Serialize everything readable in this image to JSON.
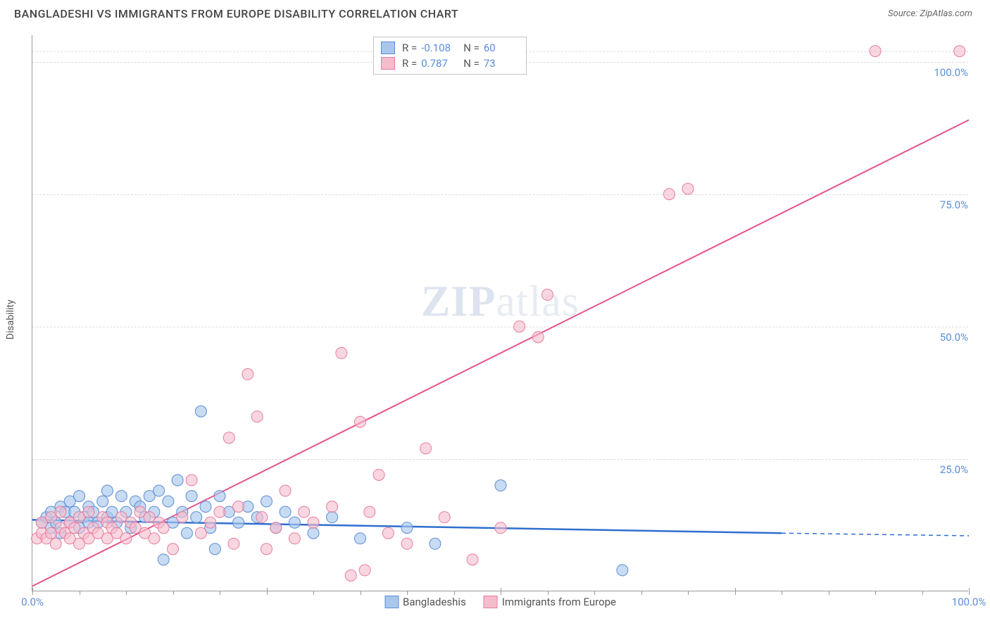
{
  "header": {
    "title": "BANGLADESHI VS IMMIGRANTS FROM EUROPE DISABILITY CORRELATION CHART",
    "source": "Source: ZipAtlas.com"
  },
  "chart": {
    "type": "scatter",
    "ylabel": "Disability",
    "xlim": [
      0,
      100
    ],
    "ylim": [
      0,
      105
    ],
    "yticks": [
      {
        "v": 25,
        "label": "25.0%"
      },
      {
        "v": 50,
        "label": "50.0%"
      },
      {
        "v": 75,
        "label": "75.0%"
      },
      {
        "v": 100,
        "label": "100.0%"
      }
    ],
    "xticks_major": [
      0,
      25,
      50,
      75,
      100
    ],
    "xticks_minor_step": 5,
    "xtick_labels": [
      {
        "v": 0,
        "label": "0.0%"
      },
      {
        "v": 100,
        "label": "100.0%"
      }
    ],
    "background_color": "#ffffff",
    "grid_color": "#dddddd",
    "axis_color": "#999999",
    "label_color": "#5b8dd6",
    "watermark": {
      "zip": "ZIP",
      "atlas": "atlas"
    },
    "series": [
      {
        "name": "Bangladeshis",
        "marker_fill": "#a9c7ec",
        "marker_stroke": "#5b8dd6",
        "marker_opacity": 0.65,
        "marker_radius": 8,
        "line_color": "#2f6fd0",
        "line_width": 2.5,
        "trend": {
          "x1": 0,
          "y1": 13.5,
          "x2": 80,
          "y2": 11.0,
          "dash_from_x": 80,
          "dash_to_x": 100,
          "dash_y": 10.5
        },
        "stats": {
          "R": "-0.108",
          "N": "60"
        },
        "points": [
          [
            1,
            13
          ],
          [
            1.5,
            14
          ],
          [
            2,
            12
          ],
          [
            2,
            15
          ],
          [
            2.5,
            13
          ],
          [
            3,
            11
          ],
          [
            3,
            16
          ],
          [
            3.5,
            15
          ],
          [
            4,
            13
          ],
          [
            4,
            17
          ],
          [
            4.5,
            15
          ],
          [
            5,
            12
          ],
          [
            5,
            18
          ],
          [
            5.5,
            14
          ],
          [
            6,
            13
          ],
          [
            6,
            16
          ],
          [
            6.5,
            15
          ],
          [
            7,
            13
          ],
          [
            7.5,
            17
          ],
          [
            8,
            14
          ],
          [
            8,
            19
          ],
          [
            8.5,
            15
          ],
          [
            9,
            13
          ],
          [
            9.5,
            18
          ],
          [
            10,
            15
          ],
          [
            10.5,
            12
          ],
          [
            11,
            17
          ],
          [
            11.5,
            16
          ],
          [
            12,
            14
          ],
          [
            12.5,
            18
          ],
          [
            13,
            15
          ],
          [
            13.5,
            19
          ],
          [
            14,
            6
          ],
          [
            14.5,
            17
          ],
          [
            15,
            13
          ],
          [
            15.5,
            21
          ],
          [
            16,
            15
          ],
          [
            16.5,
            11
          ],
          [
            17,
            18
          ],
          [
            17.5,
            14
          ],
          [
            18,
            34
          ],
          [
            18.5,
            16
          ],
          [
            19,
            12
          ],
          [
            19.5,
            8
          ],
          [
            20,
            18
          ],
          [
            21,
            15
          ],
          [
            22,
            13
          ],
          [
            23,
            16
          ],
          [
            24,
            14
          ],
          [
            25,
            17
          ],
          [
            26,
            12
          ],
          [
            27,
            15
          ],
          [
            28,
            13
          ],
          [
            30,
            11
          ],
          [
            32,
            14
          ],
          [
            35,
            10
          ],
          [
            40,
            12
          ],
          [
            43,
            9
          ],
          [
            50,
            20
          ],
          [
            63,
            4
          ]
        ]
      },
      {
        "name": "Immigrants from Europe",
        "marker_fill": "#f5bccb",
        "marker_stroke": "#e87ca0",
        "marker_opacity": 0.6,
        "marker_radius": 8,
        "line_color": "#e8528a",
        "line_width": 2,
        "trend": {
          "x1": 0,
          "y1": 1,
          "x2": 100,
          "y2": 89
        },
        "stats": {
          "R": "0.787",
          "N": "73"
        },
        "points": [
          [
            0.5,
            10
          ],
          [
            1,
            11
          ],
          [
            1,
            13
          ],
          [
            1.5,
            10
          ],
          [
            2,
            11
          ],
          [
            2,
            14
          ],
          [
            2.5,
            9
          ],
          [
            3,
            12
          ],
          [
            3,
            15
          ],
          [
            3.5,
            11
          ],
          [
            4,
            10
          ],
          [
            4,
            13
          ],
          [
            4.5,
            12
          ],
          [
            5,
            9
          ],
          [
            5,
            14
          ],
          [
            5.5,
            11
          ],
          [
            6,
            10
          ],
          [
            6,
            15
          ],
          [
            6.5,
            12
          ],
          [
            7,
            11
          ],
          [
            7.5,
            14
          ],
          [
            8,
            10
          ],
          [
            8,
            13
          ],
          [
            8.5,
            12
          ],
          [
            9,
            11
          ],
          [
            9.5,
            14
          ],
          [
            10,
            10
          ],
          [
            10.5,
            13
          ],
          [
            11,
            12
          ],
          [
            11.5,
            15
          ],
          [
            12,
            11
          ],
          [
            12.5,
            14
          ],
          [
            13,
            10
          ],
          [
            13.5,
            13
          ],
          [
            14,
            12
          ],
          [
            15,
            8
          ],
          [
            16,
            14
          ],
          [
            17,
            21
          ],
          [
            18,
            11
          ],
          [
            19,
            13
          ],
          [
            20,
            15
          ],
          [
            21,
            29
          ],
          [
            21.5,
            9
          ],
          [
            22,
            16
          ],
          [
            23,
            41
          ],
          [
            24,
            33
          ],
          [
            24.5,
            14
          ],
          [
            25,
            8
          ],
          [
            26,
            12
          ],
          [
            27,
            19
          ],
          [
            28,
            10
          ],
          [
            29,
            15
          ],
          [
            30,
            13
          ],
          [
            32,
            16
          ],
          [
            33,
            45
          ],
          [
            34,
            3
          ],
          [
            35,
            32
          ],
          [
            35.5,
            4
          ],
          [
            36,
            15
          ],
          [
            37,
            22
          ],
          [
            38,
            11
          ],
          [
            40,
            9
          ],
          [
            42,
            27
          ],
          [
            44,
            14
          ],
          [
            47,
            6
          ],
          [
            50,
            12
          ],
          [
            52,
            50
          ],
          [
            54,
            48
          ],
          [
            55,
            56
          ],
          [
            68,
            75
          ],
          [
            70,
            76
          ],
          [
            90,
            102
          ],
          [
            99,
            102
          ]
        ]
      }
    ],
    "bottom_legend": [
      {
        "label": "Bangladeshis",
        "fill": "#a9c7ec",
        "stroke": "#5b8dd6"
      },
      {
        "label": "Immigrants from Europe",
        "fill": "#f5bccb",
        "stroke": "#e87ca0"
      }
    ]
  }
}
